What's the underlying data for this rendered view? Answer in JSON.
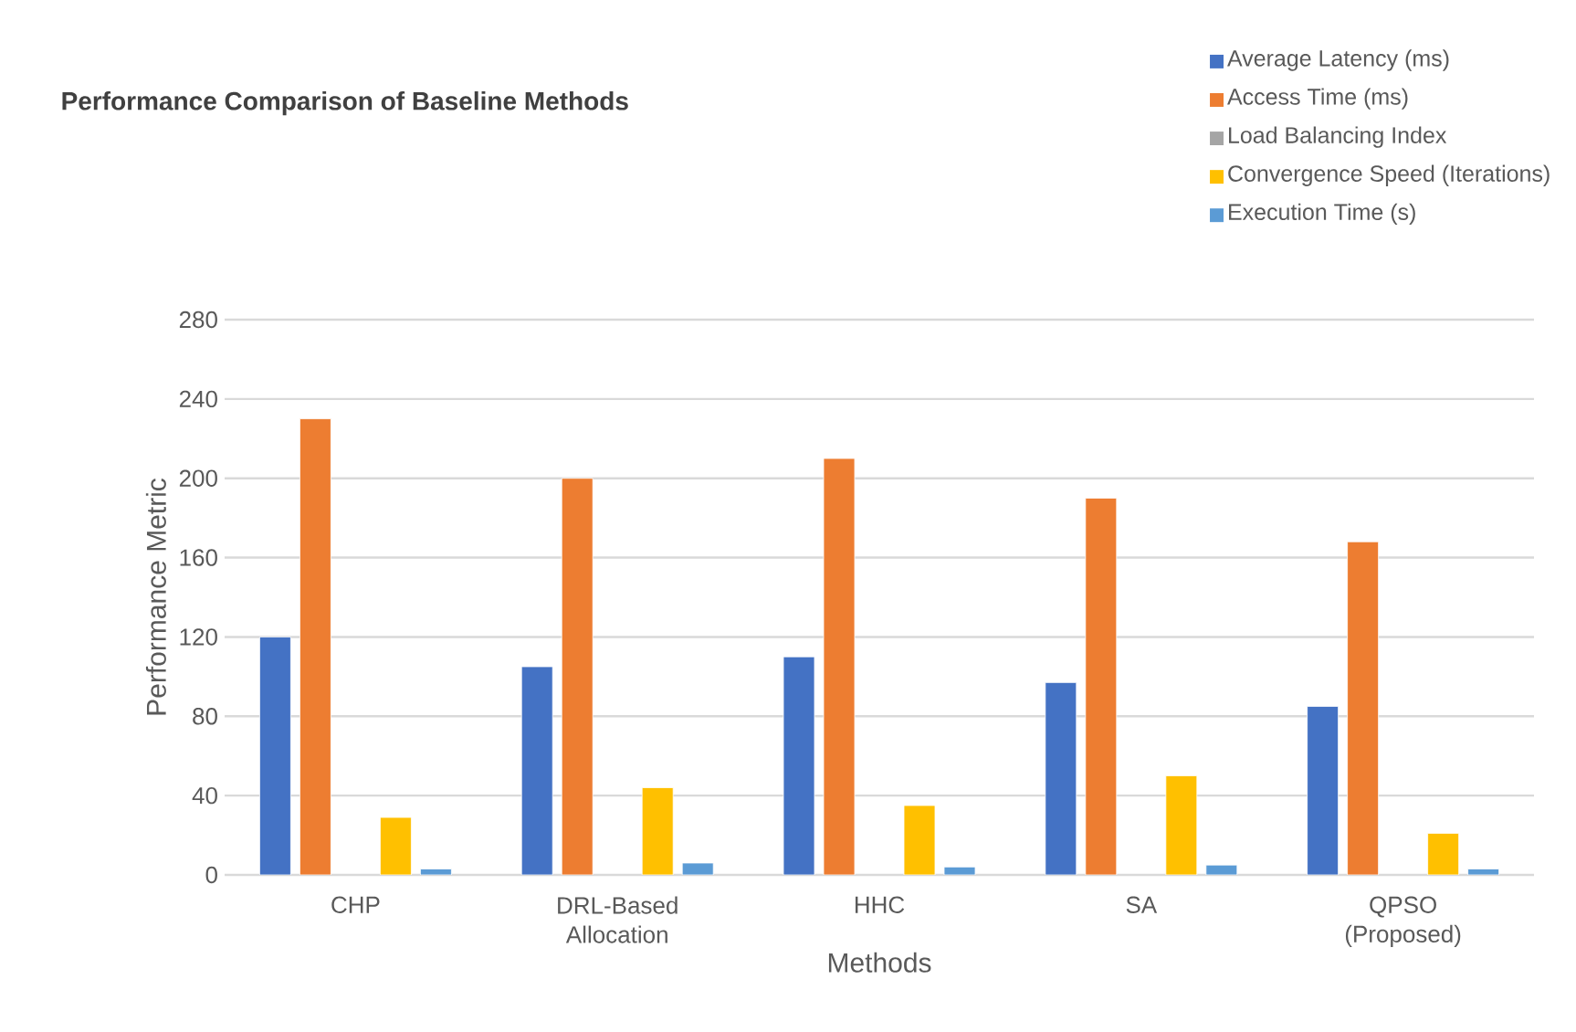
{
  "chart_data": {
    "type": "bar",
    "title": "Performance Comparison of Baseline Methods",
    "xlabel": "Methods",
    "ylabel": "Performance Metric",
    "categories": [
      "CHP",
      "DRL-Based Allocation",
      "HHC",
      "SA",
      "QPSO (Proposed)"
    ],
    "series": [
      {
        "name": "Average Latency (ms)",
        "color": "#4472c4",
        "values": [
          120,
          105,
          110,
          97,
          85
        ]
      },
      {
        "name": "Access Time (ms)",
        "color": "#ed7d31",
        "values": [
          230,
          200,
          210,
          190,
          168
        ]
      },
      {
        "name": "Load Balancing Index",
        "color": "#a5a5a5",
        "values": [
          null,
          null,
          null,
          null,
          null
        ]
      },
      {
        "name": "Convergence Speed (Iterations)",
        "color": "#ffc000",
        "values": [
          29,
          44,
          35,
          50,
          21
        ]
      },
      {
        "name": "Execution Time (s)",
        "color": "#5b9bd5",
        "values": [
          3,
          6,
          4,
          5,
          3
        ]
      }
    ],
    "ylim": [
      0,
      280
    ],
    "yticks": [
      0,
      40,
      80,
      120,
      160,
      200,
      240,
      280
    ],
    "grid": "y",
    "legend": "top right"
  }
}
